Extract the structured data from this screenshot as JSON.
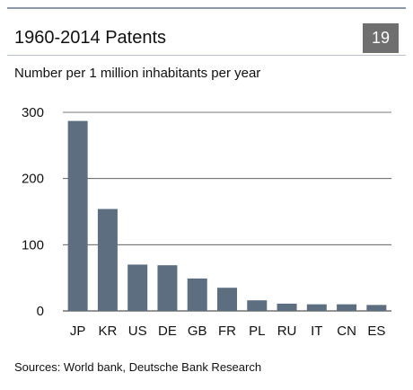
{
  "header": {
    "title": "1960-2014 Patents",
    "chart_number": "19",
    "accent_color": "#6f6f6f"
  },
  "chart_data": {
    "type": "bar",
    "title": "1960-2014 Patents",
    "subtitle": "Number per 1 million inhabitants per year",
    "xlabel": "",
    "ylabel": "",
    "categories": [
      "JP",
      "KR",
      "US",
      "DE",
      "GB",
      "FR",
      "PL",
      "RU",
      "IT",
      "CN",
      "ES"
    ],
    "values": [
      287,
      154,
      70,
      69,
      49,
      35,
      16,
      11,
      10,
      10,
      9
    ],
    "ylim": [
      0,
      300
    ],
    "yticks": [
      0,
      100,
      200,
      300
    ],
    "grid": true,
    "bar_color": "#5d6e81"
  },
  "footer": {
    "source": "Sources: World bank, Deutsche Bank Research"
  }
}
